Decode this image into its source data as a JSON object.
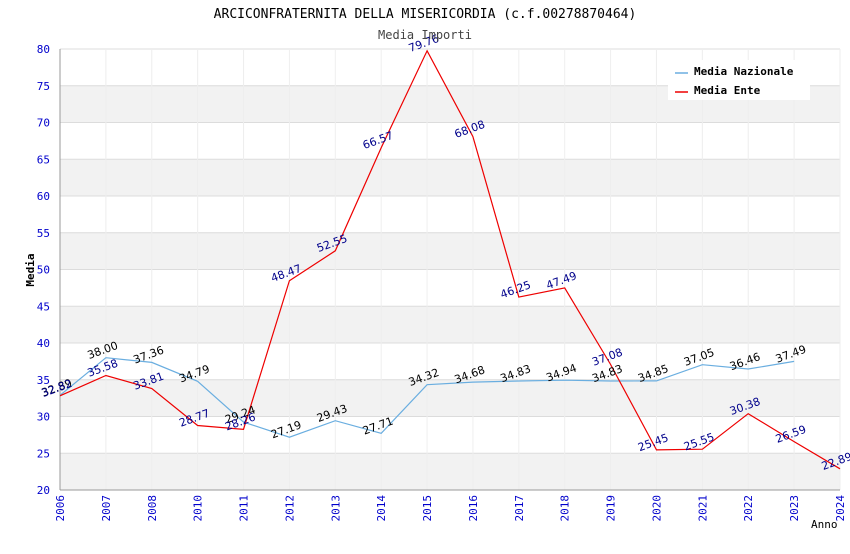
{
  "chart_data": {
    "type": "line",
    "title": "ARCICONFRATERNITA DELLA MISERICORDIA (c.f.00278870464)",
    "subtitle": "Media Importi",
    "xlabel": "Anno",
    "ylabel": "Media",
    "ylim": [
      20,
      80
    ],
    "y_ticks": [
      "20",
      "25",
      "30",
      "35",
      "40",
      "45",
      "50",
      "55",
      "60",
      "65",
      "70",
      "75",
      "80"
    ],
    "x": [
      "2006",
      "2007",
      "2008",
      "2010",
      "2011",
      "2012",
      "2013",
      "2014",
      "2015",
      "2016",
      "2017",
      "2018",
      "2019",
      "2020",
      "2021",
      "2022",
      "2023",
      "2024"
    ],
    "grid": true,
    "legend_position": "top-right",
    "series": [
      {
        "name": "Media Nazionale",
        "color": "#6aaee0",
        "label_color": "#000000",
        "values": [
          32.89,
          38.0,
          37.36,
          34.79,
          29.24,
          27.19,
          29.43,
          27.71,
          34.32,
          34.68,
          34.83,
          34.94,
          34.83,
          34.85,
          37.05,
          36.46,
          37.49,
          null
        ],
        "labels": [
          "32.89",
          "38.00",
          "37.36",
          "34.79",
          "29.24",
          "27.19",
          "29.43",
          "27.71",
          "34.32",
          "34.68",
          "34.83",
          "34.94",
          "34.83",
          "34.85",
          "37.05",
          "36.46",
          "37.49",
          null
        ]
      },
      {
        "name": "Media Ente",
        "color": "#ee0000",
        "label_color": "#00008b",
        "values": [
          32.82,
          35.58,
          33.81,
          28.77,
          28.26,
          48.47,
          52.55,
          66.57,
          79.76,
          68.08,
          46.25,
          47.49,
          37.08,
          25.45,
          25.55,
          30.38,
          26.59,
          22.89
        ],
        "labels": [
          "32.82",
          "35.58",
          "33.81",
          "28.77",
          "28.26",
          "48.47",
          "52.55",
          "66.57",
          "79.76",
          "68.08",
          "46.25",
          "47.49",
          "37.08",
          "25.45",
          "25.55",
          "30.38",
          "26.59",
          "22.89"
        ]
      }
    ]
  }
}
